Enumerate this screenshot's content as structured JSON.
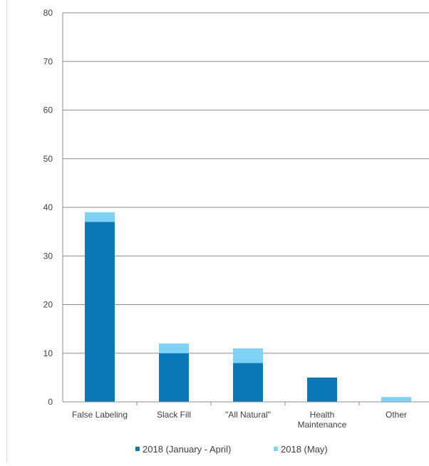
{
  "chart_data": {
    "type": "bar",
    "stacked": true,
    "title": "",
    "xlabel": "",
    "ylabel": "",
    "ylim": [
      0,
      80
    ],
    "yticks": [
      0,
      10,
      20,
      30,
      40,
      50,
      60,
      70,
      80
    ],
    "grid": true,
    "legend_position": "bottom",
    "categories": [
      [
        "False Labeling"
      ],
      [
        "Slack Fill"
      ],
      [
        "\"All Natural\""
      ],
      [
        "Health",
        "Maintenance"
      ],
      [
        "Other"
      ]
    ],
    "series": [
      {
        "name": "2018 (January - April)",
        "color": "#0a78b4",
        "values": [
          37,
          10,
          8,
          5,
          0
        ]
      },
      {
        "name": "2018 (May)",
        "color": "#7dd3f5",
        "values": [
          2,
          2,
          3,
          0,
          1
        ]
      }
    ]
  },
  "colors": {
    "axis": "#8c8c8c",
    "grid": "#8c8c8c",
    "text": "#404040"
  }
}
